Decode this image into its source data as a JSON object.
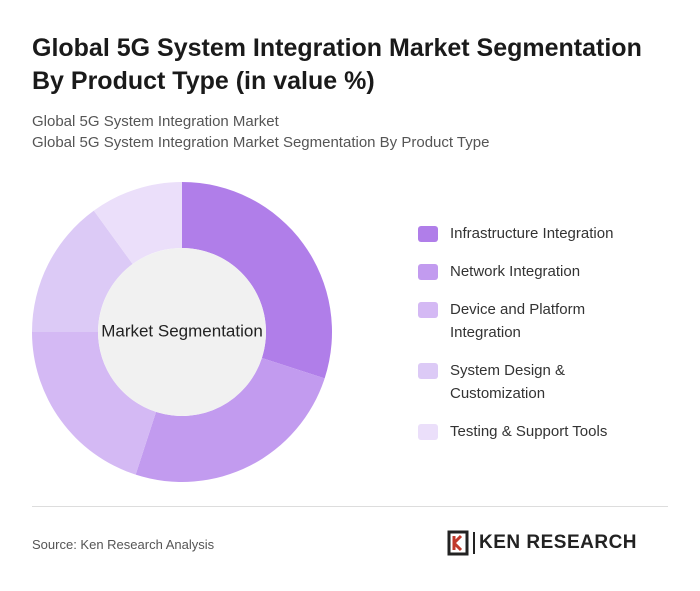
{
  "title": "Global 5G System Integration Market Segmentation By Product Type (in value %)",
  "subtitle": [
    "Global 5G System Integration Market",
    "Global 5G System Integration Market Segmentation By Product Type"
  ],
  "chart_data": {
    "type": "donut",
    "center_label": "Market Segmentation",
    "categories": [
      "Infrastructure Integration",
      "Network Integration",
      "Device and Platform Integration",
      "System Design & Customization",
      "Testing & Support Tools"
    ],
    "values": [
      30,
      25,
      20,
      15,
      10
    ],
    "colors": [
      "#b07ee9",
      "#c29bef",
      "#d4b9f4",
      "#dccaf6",
      "#ebdffa"
    ]
  },
  "source": "Source: Ken Research Analysis",
  "brand": "KEN RESEARCH"
}
